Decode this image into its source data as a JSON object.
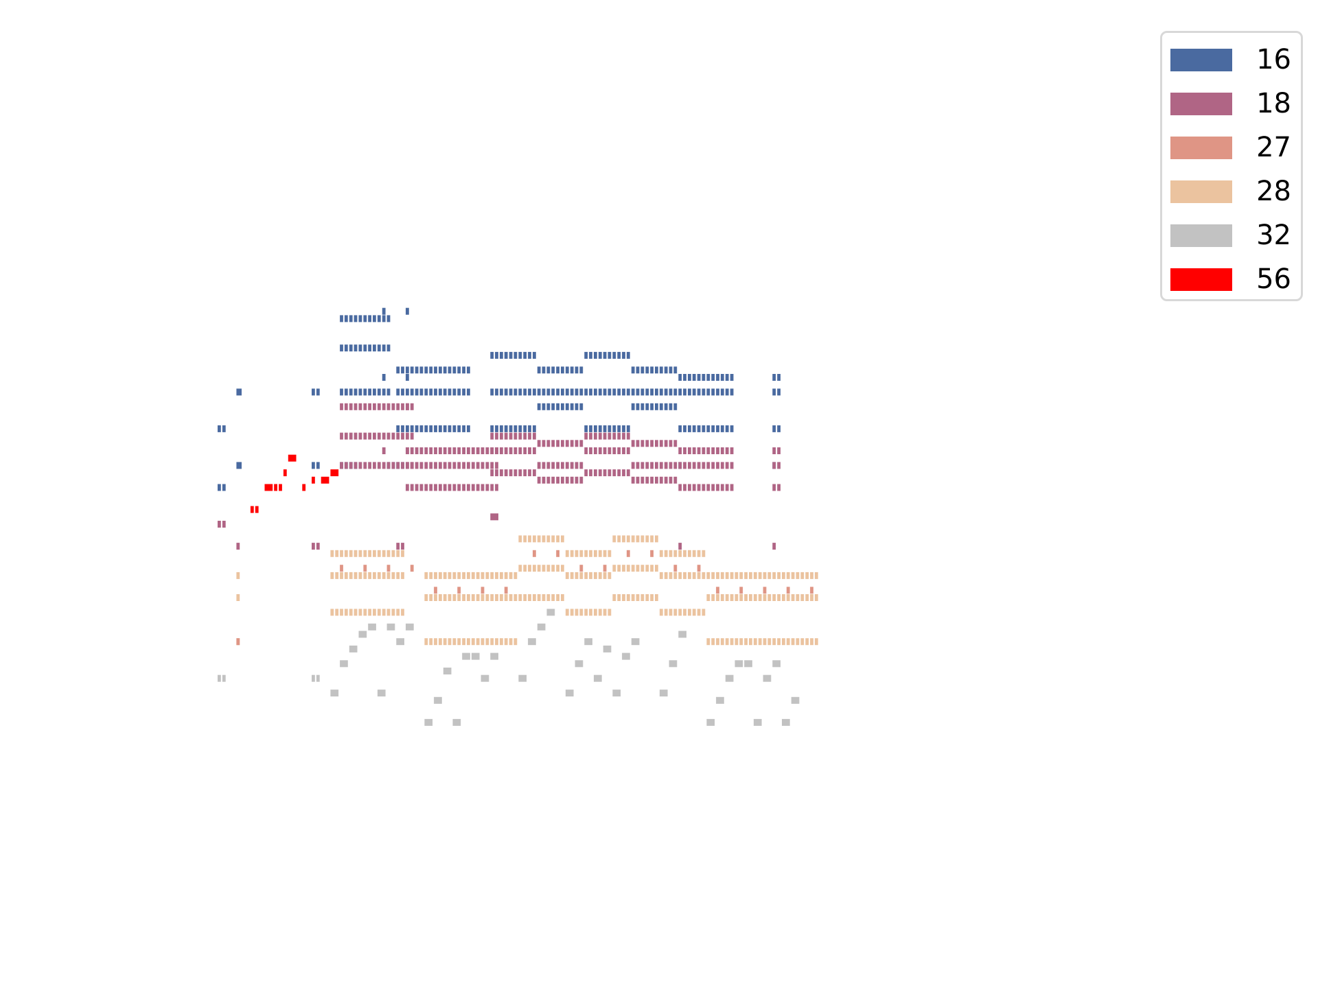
{
  "chart_data": {
    "type": "piano-roll",
    "axes_visible": false,
    "grid": false,
    "legend_position": "top-right",
    "x_range": [
      0,
      128
    ],
    "y_range": [
      20,
      100
    ],
    "series": [
      {
        "name": "16",
        "color": "#4a6aa0",
        "notes": [
          [
            0,
            0,
            2,
            68
          ],
          [
            3,
            0,
            2,
            76
          ],
          [
            3,
            0,
            2,
            68
          ],
          [
            0,
            0,
            2,
            63
          ],
          [
            19,
            0,
            2,
            76
          ],
          [
            19,
            0,
            2,
            68
          ],
          [
            26,
            0,
            5,
            88
          ],
          [
            26,
            0,
            5,
            84
          ],
          [
            26,
            0,
            5,
            78
          ],
          [
            32,
            0,
            6,
            88
          ],
          [
            32,
            0,
            6,
            84
          ],
          [
            32,
            0,
            6,
            78
          ],
          [
            36,
            0,
            1,
            89
          ],
          [
            36,
            0,
            1,
            80
          ],
          [
            37,
            0,
            1,
            80
          ],
          [
            38,
            0,
            1,
            80
          ],
          [
            40,
            0,
            1,
            88
          ],
          [
            40,
            0,
            2,
            84
          ],
          [
            40,
            0,
            2,
            78
          ],
          [
            41,
            0,
            1,
            89
          ],
          [
            41,
            0,
            1,
            80
          ],
          [
            44,
            0,
            2,
            78
          ],
          [
            46,
            0,
            5,
            83
          ],
          [
            46,
            0,
            5,
            73
          ],
          [
            51,
            0,
            6,
            78
          ],
          [
            51,
            0,
            6,
            73
          ],
          [
            54,
            0,
            1,
            84
          ],
          [
            54,
            0,
            1,
            75
          ],
          [
            55,
            0,
            1,
            83
          ],
          [
            57,
            0,
            1,
            75
          ],
          [
            57,
            0,
            1,
            73
          ],
          [
            59,
            0,
            1,
            83
          ],
          [
            59,
            0,
            1,
            75
          ],
          [
            63,
            0,
            1,
            77
          ],
          [
            63,
            0,
            1,
            70
          ],
          [
            64,
            0,
            1,
            75
          ],
          [
            65,
            0,
            1,
            77
          ],
          [
            65,
            0,
            1,
            70
          ],
          [
            66,
            0,
            1,
            77
          ],
          [
            66,
            0,
            1,
            70
          ],
          [
            67,
            0,
            1,
            75
          ],
          [
            68,
            0,
            1,
            77
          ],
          [
            68,
            0,
            1,
            70
          ],
          [
            69,
            0,
            1,
            77
          ],
          [
            69,
            0,
            1,
            70
          ],
          [
            73,
            0,
            2,
            83
          ],
          [
            73,
            0,
            2,
            78
          ],
          [
            73,
            0,
            2,
            75
          ],
          [
            75,
            0,
            1,
            83
          ],
          [
            75,
            0,
            1,
            78
          ],
          [
            75,
            0,
            1,
            75
          ],
          [
            76,
            0,
            3,
            83
          ],
          [
            76,
            0,
            3,
            78
          ],
          [
            76,
            0,
            3,
            75
          ],
          [
            82,
            0,
            2,
            77
          ],
          [
            82,
            0,
            2,
            72
          ],
          [
            84,
            0,
            2,
            77
          ],
          [
            84,
            0,
            2,
            72
          ],
          [
            86,
            0,
            1,
            77
          ],
          [
            86,
            0,
            1,
            72
          ],
          [
            87,
            0,
            1,
            77
          ],
          [
            87,
            0,
            1,
            72
          ],
          [
            88,
            0,
            1,
            77
          ],
          [
            88,
            0,
            1,
            72
          ],
          [
            90,
            0,
            1,
            77
          ],
          [
            90,
            0,
            1,
            72
          ],
          [
            91,
            0,
            1,
            77
          ],
          [
            91,
            0,
            1,
            72
          ],
          [
            104,
            0,
            5,
            78
          ],
          [
            104,
            0,
            5,
            75
          ],
          [
            104,
            0,
            5,
            73
          ],
          [
            106,
            0,
            1,
            81
          ],
          [
            107,
            0,
            1,
            75
          ],
          [
            109,
            0,
            1,
            77
          ],
          [
            111,
            0,
            1,
            77
          ],
          [
            111,
            0,
            3,
            73
          ],
          [
            111,
            0,
            1,
            70
          ],
          [
            112,
            0,
            1,
            75
          ],
          [
            114,
            0,
            3,
            70
          ],
          [
            114,
            0,
            2,
            66
          ],
          [
            115,
            0,
            3,
            68
          ],
          [
            116,
            0,
            3,
            68
          ],
          [
            115,
            0,
            2,
            63
          ],
          [
            116,
            0,
            2,
            63
          ],
          [
            116,
            0,
            1,
            66
          ],
          [
            118,
            0,
            1,
            68
          ],
          [
            118,
            0,
            2,
            66
          ],
          [
            121,
            0,
            2,
            68
          ],
          [
            123,
            0,
            1,
            72
          ],
          [
            123,
            0,
            1,
            68
          ],
          [
            125,
            0,
            1,
            72
          ],
          [
            127,
            0,
            1,
            77
          ],
          [
            127,
            0,
            1,
            72
          ],
          [
            127,
            0,
            1,
            68
          ],
          [
            128,
            0,
            1,
            73
          ],
          [
            128,
            0,
            1,
            70
          ],
          [
            132,
            0,
            5,
            89
          ],
          [
            132,
            0,
            5,
            84
          ],
          [
            132,
            0,
            5,
            78
          ],
          [
            132,
            0,
            5,
            73
          ],
          [
            138,
            0,
            2,
            89
          ],
          [
            140,
            0,
            2,
            84
          ],
          [
            140,
            0,
            2,
            78
          ],
          [
            140,
            0,
            2,
            73
          ],
          [
            143,
            0,
            1,
            84
          ],
          [
            143,
            0,
            1,
            80
          ],
          [
            144,
            0,
            1,
            84
          ],
          [
            145,
            0,
            1,
            84
          ],
          [
            146,
            0,
            3,
            89
          ],
          [
            149,
            0,
            2,
            89
          ],
          [
            151,
            0,
            1,
            89
          ],
          [
            152,
            0,
            1,
            89
          ],
          [
            153,
            0,
            1,
            89
          ],
          [
            160,
            0,
            5,
            84
          ],
          [
            160,
            0,
            5,
            80
          ],
          [
            165,
            0,
            1,
            84
          ],
          [
            165,
            0,
            1,
            80
          ],
          [
            166,
            0,
            1,
            84
          ],
          [
            168,
            0,
            2,
            89
          ],
          [
            168,
            0,
            2,
            84
          ],
          [
            168,
            0,
            2,
            80
          ],
          [
            170,
            0,
            1,
            84
          ],
          [
            171,
            0,
            1,
            84
          ],
          [
            172,
            0,
            1,
            84
          ],
          [
            174,
            0,
            3,
            93
          ],
          [
            177,
            0,
            2,
            89
          ],
          [
            177,
            0,
            2,
            84
          ],
          [
            177,
            0,
            2,
            80
          ],
          [
            181,
            0,
            3,
            89
          ],
          [
            181,
            0,
            3,
            84
          ],
          [
            181,
            0,
            3,
            80
          ],
          [
            185,
            0,
            1,
            93
          ],
          [
            186,
            0,
            1,
            93
          ],
          [
            188,
            0,
            1,
            93
          ],
          [
            190,
            0,
            1,
            89
          ]
        ]
      }
    ]
  },
  "legend": {
    "entries": [
      {
        "label": "16",
        "color": "#4a6aa0"
      },
      {
        "label": "18",
        "color": "#b06585"
      },
      {
        "label": "27",
        "color": "#df9585"
      },
      {
        "label": "28",
        "color": "#ebc39f"
      },
      {
        "label": "32",
        "color": "#c2c2c2"
      },
      {
        "label": "56",
        "color": "#ff0000"
      }
    ]
  }
}
